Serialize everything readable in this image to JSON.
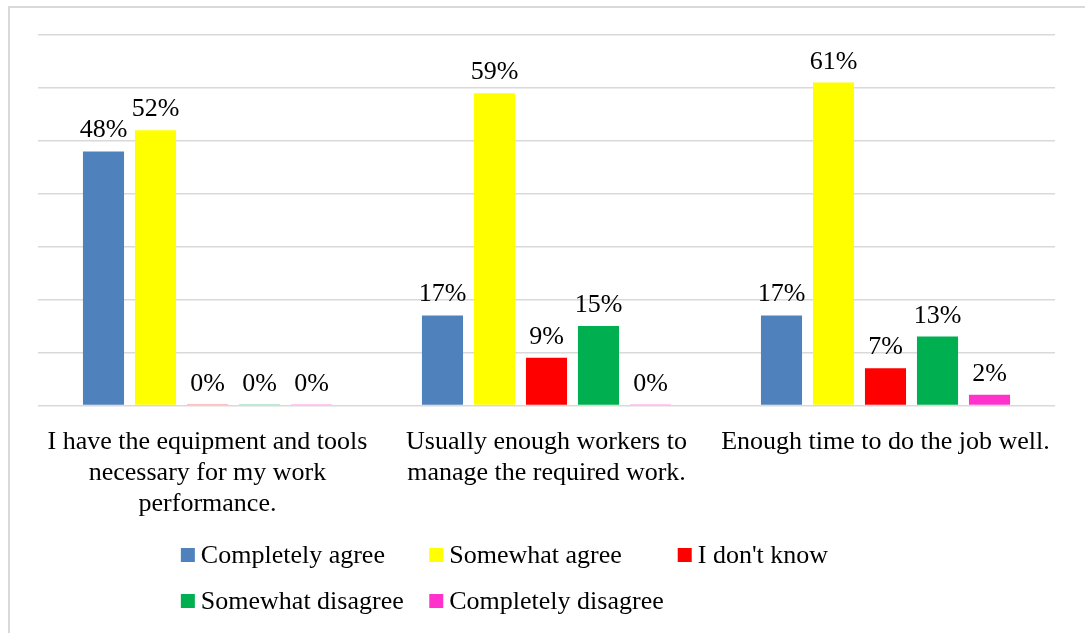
{
  "chart_data": {
    "type": "bar",
    "categories": [
      "I have the equipment and tools necessary for my work performance.",
      "Usually enough workers to manage the required work.",
      "Enough time to do the job well."
    ],
    "series": [
      {
        "name": "Completely agree",
        "color": "#4f81bd",
        "values": [
          48,
          17,
          17
        ],
        "value_labels": [
          "48%",
          "17%",
          "17%"
        ]
      },
      {
        "name": "Somewhat agree",
        "color": "#ffff00",
        "values": [
          52,
          59,
          61
        ],
        "value_labels": [
          "52%",
          "59%",
          "61%"
        ]
      },
      {
        "name": "I don't know",
        "color": "#ff0000",
        "values": [
          0,
          9,
          7
        ],
        "value_labels": [
          "0%",
          "9%",
          "7%"
        ]
      },
      {
        "name": "Somewhat disagree",
        "color": "#00b050",
        "values": [
          0,
          15,
          13
        ],
        "value_labels": [
          "0%",
          "15%",
          "13%"
        ]
      },
      {
        "name": "Completely disagree",
        "color": "#ff33cc",
        "values": [
          0,
          0,
          2
        ],
        "value_labels": [
          "0%",
          "0%",
          "2%"
        ]
      }
    ],
    "ylim": [
      0,
      70
    ],
    "yticks": [
      {
        "value": 0,
        "label": null
      },
      {
        "value": 10,
        "label": null
      },
      {
        "value": 20,
        "label": null
      },
      {
        "value": 30,
        "label": null
      },
      {
        "value": 40,
        "label": null
      },
      {
        "value": 50,
        "label": null
      },
      {
        "value": 60,
        "label": null
      },
      {
        "value": 70,
        "label": null
      }
    ],
    "grid": "y",
    "legend": "bottom",
    "tick_labels": "x"
  }
}
